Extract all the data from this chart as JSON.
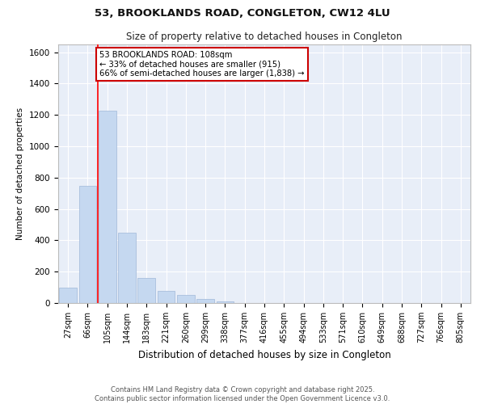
{
  "title_line1": "53, BROOKLANDS ROAD, CONGLETON, CW12 4LU",
  "title_line2": "Size of property relative to detached houses in Congleton",
  "xlabel": "Distribution of detached houses by size in Congleton",
  "ylabel": "Number of detached properties",
  "categories": [
    "27sqm",
    "66sqm",
    "105sqm",
    "144sqm",
    "183sqm",
    "221sqm",
    "260sqm",
    "299sqm",
    "338sqm",
    "377sqm",
    "416sqm",
    "455sqm",
    "494sqm",
    "533sqm",
    "571sqm",
    "610sqm",
    "649sqm",
    "688sqm",
    "727sqm",
    "766sqm",
    "805sqm"
  ],
  "values": [
    100,
    750,
    1225,
    450,
    160,
    75,
    50,
    25,
    10,
    0,
    0,
    0,
    0,
    0,
    0,
    0,
    0,
    0,
    0,
    0,
    0
  ],
  "bar_color": "#c5d8f0",
  "bar_edge_color": "#a0b8d8",
  "red_line_x": 1.5,
  "red_line_label": "53 BROOKLANDS ROAD: 108sqm",
  "annotation_line2": "← 33% of detached houses are smaller (915)",
  "annotation_line3": "66% of semi-detached houses are larger (1,838) →",
  "annotation_box_color": "#ffffff",
  "annotation_box_edge": "#cc0000",
  "ylim": [
    0,
    1650
  ],
  "yticks": [
    0,
    200,
    400,
    600,
    800,
    1000,
    1200,
    1400,
    1600
  ],
  "background_color": "#e8eef8",
  "grid_color": "#ffffff",
  "footer_line1": "Contains HM Land Registry data © Crown copyright and database right 2025.",
  "footer_line2": "Contains public sector information licensed under the Open Government Licence v3.0."
}
